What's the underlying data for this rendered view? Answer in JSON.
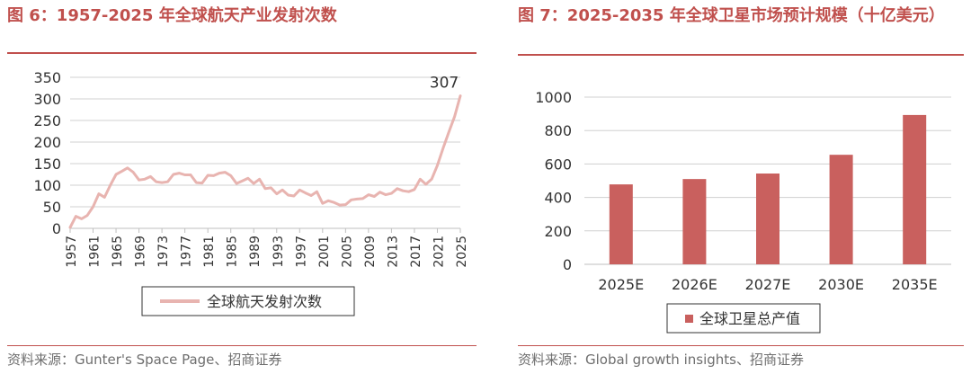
{
  "fig1": {
    "title": "图 6：1957-2025 年全球航天产业发射次数",
    "source": "资料来源：Gunter's Space Page、招商证券"
  },
  "fig2": {
    "title": "图 7：2025-2035 年全球卫星市场预计规模（十亿美元）",
    "source": "资料来源：Global growth insights、招商证券"
  },
  "colors": {
    "accent": "#c0504d",
    "line": "#e8b4b0",
    "bar": "#c9605e",
    "grid": "#d0d0d0"
  },
  "chart_data": [
    {
      "type": "line",
      "title": "",
      "xlabel": "",
      "ylabel": "",
      "ylim": [
        0,
        350
      ],
      "yticks": [
        "0",
        "50",
        "100",
        "150",
        "200",
        "250",
        "300",
        "350"
      ],
      "xticks": [
        "1957",
        "1961",
        "1965",
        "1969",
        "1973",
        "1977",
        "1981",
        "1985",
        "1989",
        "1993",
        "1997",
        "2001",
        "2005",
        "2009",
        "2013",
        "2017",
        "2021",
        "2025"
      ],
      "grid": true,
      "legend_position": "bottom",
      "annotation": "307",
      "series": [
        {
          "name": "全球航天发射次数",
          "x": [
            1957,
            1958,
            1959,
            1960,
            1961,
            1962,
            1963,
            1964,
            1965,
            1966,
            1967,
            1968,
            1969,
            1970,
            1971,
            1972,
            1973,
            1974,
            1975,
            1976,
            1977,
            1978,
            1979,
            1980,
            1981,
            1982,
            1983,
            1984,
            1985,
            1986,
            1987,
            1988,
            1989,
            1990,
            1991,
            1992,
            1993,
            1994,
            1995,
            1996,
            1997,
            1998,
            1999,
            2000,
            2001,
            2002,
            2003,
            2004,
            2005,
            2006,
            2007,
            2008,
            2009,
            2010,
            2011,
            2012,
            2013,
            2014,
            2015,
            2016,
            2017,
            2018,
            2019,
            2020,
            2021,
            2022,
            2023,
            2024,
            2025
          ],
          "values": [
            2,
            28,
            22,
            30,
            50,
            80,
            72,
            100,
            125,
            132,
            140,
            130,
            112,
            114,
            120,
            108,
            106,
            108,
            125,
            128,
            124,
            124,
            106,
            105,
            123,
            122,
            128,
            130,
            122,
            104,
            110,
            116,
            104,
            114,
            92,
            94,
            80,
            89,
            77,
            75,
            89,
            82,
            76,
            85,
            58,
            64,
            60,
            54,
            55,
            66,
            68,
            69,
            78,
            74,
            84,
            78,
            81,
            92,
            87,
            85,
            90,
            114,
            102,
            114,
            146,
            186,
            223,
            259,
            307
          ]
        }
      ]
    },
    {
      "type": "bar",
      "title": "",
      "xlabel": "",
      "ylabel": "",
      "ylim": [
        0,
        1000
      ],
      "yticks": [
        "0",
        "200",
        "400",
        "600",
        "800",
        "1000"
      ],
      "grid": true,
      "legend_position": "bottom",
      "categories": [
        "2025E",
        "2026E",
        "2027E",
        "2030E",
        "2035E"
      ],
      "series": [
        {
          "name": "全球卫星总产值",
          "values": [
            478,
            510,
            543,
            655,
            893
          ]
        }
      ]
    }
  ]
}
